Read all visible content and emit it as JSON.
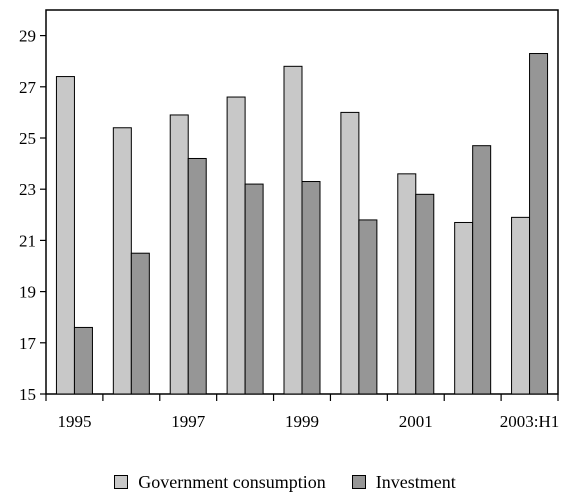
{
  "chart_data": {
    "type": "bar",
    "categories": [
      "1995",
      "1996",
      "1997",
      "1998",
      "1999",
      "2000",
      "2001",
      "2002",
      "2003:H1"
    ],
    "x_tick_labels": [
      "1995",
      "",
      "1997",
      "",
      "1999",
      "",
      "2001",
      "",
      "2003:H1"
    ],
    "series": [
      {
        "name": "Government consumption",
        "color": "#c8c8c8",
        "values": [
          27.4,
          25.4,
          25.9,
          26.6,
          27.8,
          26.0,
          23.6,
          21.7,
          21.9
        ]
      },
      {
        "name": "Investment",
        "color": "#969696",
        "values": [
          17.6,
          20.5,
          24.2,
          23.2,
          23.3,
          21.8,
          22.8,
          24.7,
          28.3
        ]
      }
    ],
    "y_ticks": [
      15,
      17,
      19,
      21,
      23,
      25,
      27,
      29
    ],
    "ylim": [
      15,
      30
    ],
    "title": "",
    "xlabel": "",
    "ylabel": "",
    "grid": false,
    "legend_position": "bottom"
  }
}
